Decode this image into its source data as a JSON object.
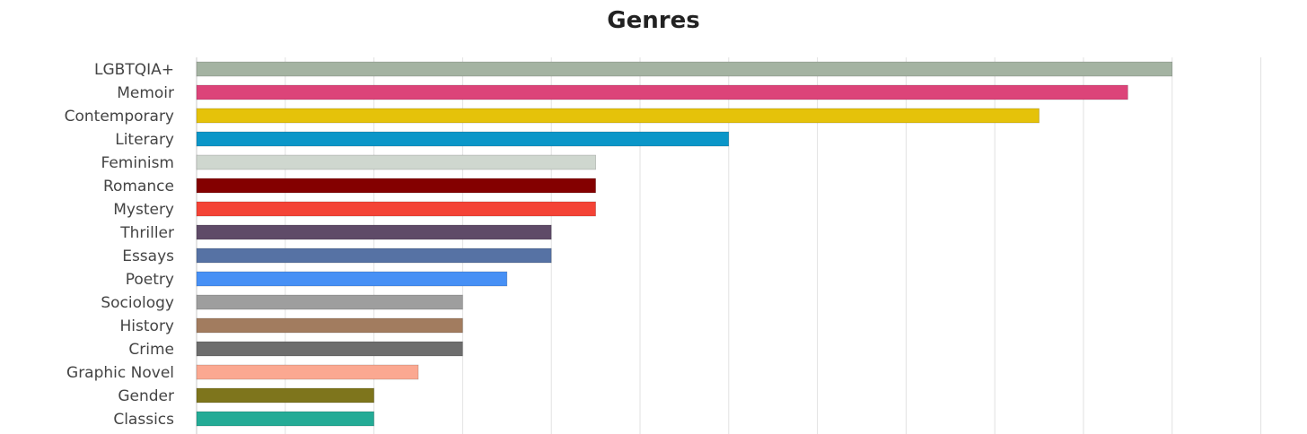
{
  "chart_data": {
    "type": "bar",
    "orientation": "horizontal",
    "title": "Genres",
    "xlabel": "",
    "ylabel": "",
    "grid": true,
    "xlim": [
      0,
      12
    ],
    "categories": [
      "LGBTQIA+",
      "Memoir",
      "Contemporary",
      "Literary",
      "Feminism",
      "Romance",
      "Mystery",
      "Thriller",
      "Essays",
      "Poetry",
      "Sociology",
      "History",
      "Crime",
      "Graphic Novel",
      "Gender",
      "Classics"
    ],
    "values": [
      11,
      10.5,
      9.5,
      6,
      4.5,
      4.5,
      4.5,
      4,
      4,
      3.5,
      3,
      3,
      3,
      2.5,
      2,
      2
    ],
    "colors": [
      "#a4b3a2",
      "#dc4479",
      "#e5c20a",
      "#0b96c8",
      "#cfd7cf",
      "#840000",
      "#f44336",
      "#5f4b68",
      "#5672a4",
      "#4790f5",
      "#9e9e9e",
      "#a27c5f",
      "#6d6d6d",
      "#fba891",
      "#7e751c",
      "#24ab96"
    ]
  }
}
